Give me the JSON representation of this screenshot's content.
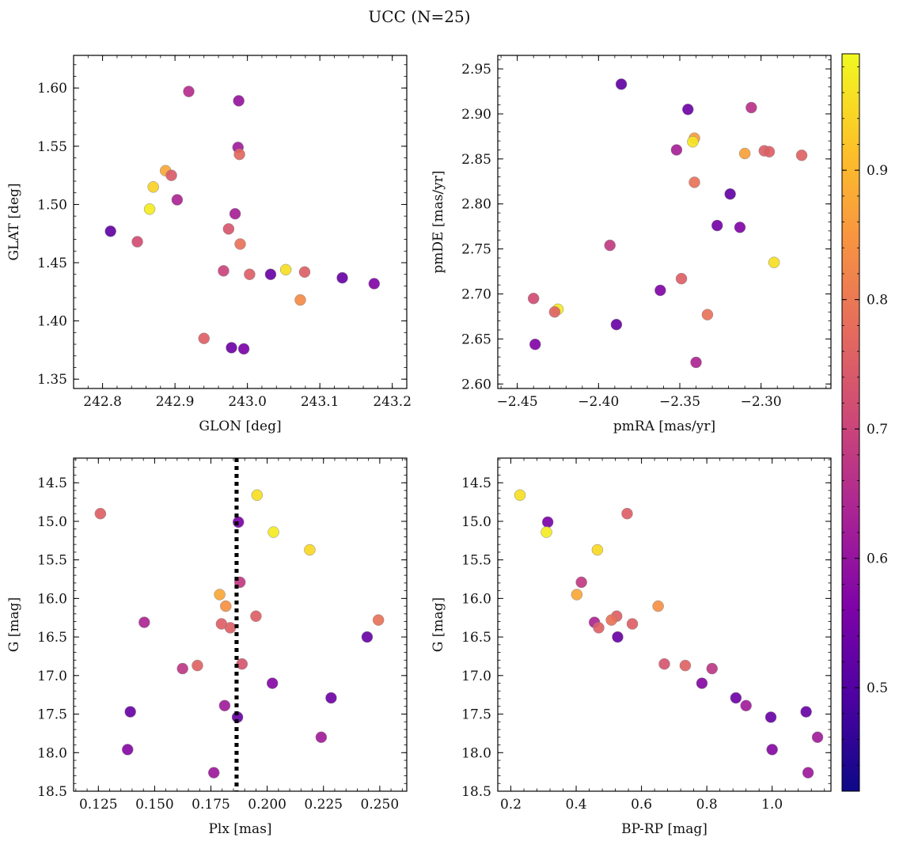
{
  "figure": {
    "title": "UCC (N=25)"
  },
  "colorbar": {
    "colormap": "plasma",
    "range": [
      0.42,
      0.99
    ],
    "ticks": [
      0.5,
      0.6,
      0.7,
      0.8,
      0.9
    ],
    "tick_labels": [
      "0.5",
      "0.6",
      "0.7",
      "0.8",
      "0.9"
    ]
  },
  "chart_data": [
    {
      "type": "scatter",
      "xlabel": "GLON [deg]",
      "ylabel": "GLAT [deg]",
      "xlim": [
        242.76,
        243.22
      ],
      "ylim": [
        1.342,
        1.628
      ],
      "y_inverted": false,
      "xticks": [
        242.8,
        242.9,
        243.0,
        243.1,
        243.2
      ],
      "xtick_labels": [
        "242.8",
        "242.9",
        "243.0",
        "243.1",
        "243.2"
      ],
      "yticks": [
        1.35,
        1.4,
        1.45,
        1.5,
        1.55,
        1.6
      ],
      "ytick_labels": [
        "1.35",
        "1.40",
        "1.45",
        "1.50",
        "1.55",
        "1.60"
      ],
      "points": [
        {
          "x": 242.919,
          "y": 1.597,
          "c": 0.61
        },
        {
          "x": 242.988,
          "y": 1.589,
          "c": 0.55
        },
        {
          "x": 242.987,
          "y": 1.549,
          "c": 0.57
        },
        {
          "x": 242.989,
          "y": 1.543,
          "c": 0.74
        },
        {
          "x": 242.887,
          "y": 1.529,
          "c": 0.86
        },
        {
          "x": 242.895,
          "y": 1.525,
          "c": 0.71
        },
        {
          "x": 242.87,
          "y": 1.515,
          "c": 0.93
        },
        {
          "x": 242.903,
          "y": 1.504,
          "c": 0.59
        },
        {
          "x": 242.865,
          "y": 1.496,
          "c": 0.97
        },
        {
          "x": 242.983,
          "y": 1.492,
          "c": 0.58
        },
        {
          "x": 242.974,
          "y": 1.479,
          "c": 0.7
        },
        {
          "x": 242.811,
          "y": 1.477,
          "c": 0.46
        },
        {
          "x": 242.848,
          "y": 1.468,
          "c": 0.68
        },
        {
          "x": 242.99,
          "y": 1.466,
          "c": 0.76
        },
        {
          "x": 243.053,
          "y": 1.444,
          "c": 0.95
        },
        {
          "x": 242.967,
          "y": 1.443,
          "c": 0.66
        },
        {
          "x": 243.079,
          "y": 1.442,
          "c": 0.72
        },
        {
          "x": 243.032,
          "y": 1.44,
          "c": 0.47
        },
        {
          "x": 243.003,
          "y": 1.44,
          "c": 0.72
        },
        {
          "x": 243.131,
          "y": 1.437,
          "c": 0.47
        },
        {
          "x": 243.175,
          "y": 1.432,
          "c": 0.51
        },
        {
          "x": 243.073,
          "y": 1.418,
          "c": 0.81
        },
        {
          "x": 242.94,
          "y": 1.385,
          "c": 0.72
        },
        {
          "x": 242.978,
          "y": 1.377,
          "c": 0.48
        },
        {
          "x": 242.995,
          "y": 1.376,
          "c": 0.5
        }
      ]
    },
    {
      "type": "scatter",
      "xlabel": "pmRA [mas/yr]",
      "ylabel": "pmDE [mas/yr]",
      "xlim": [
        -2.462,
        -2.257
      ],
      "ylim": [
        2.595,
        2.965
      ],
      "y_inverted": false,
      "xticks": [
        -2.45,
        -2.4,
        -2.35,
        -2.3
      ],
      "xtick_labels": [
        "−2.45",
        "−2.40",
        "−2.35",
        "−2.30"
      ],
      "yticks": [
        2.6,
        2.65,
        2.7,
        2.75,
        2.8,
        2.85,
        2.9,
        2.95
      ],
      "ytick_labels": [
        "2.60",
        "2.65",
        "2.70",
        "2.75",
        "2.80",
        "2.85",
        "2.90",
        "2.95"
      ],
      "points": [
        {
          "x": -2.386,
          "y": 2.933,
          "c": 0.46
        },
        {
          "x": -2.345,
          "y": 2.905,
          "c": 0.48
        },
        {
          "x": -2.306,
          "y": 2.907,
          "c": 0.62
        },
        {
          "x": -2.341,
          "y": 2.873,
          "c": 0.84
        },
        {
          "x": -2.342,
          "y": 2.869,
          "c": 0.96
        },
        {
          "x": -2.352,
          "y": 2.86,
          "c": 0.58
        },
        {
          "x": -2.298,
          "y": 2.859,
          "c": 0.72
        },
        {
          "x": -2.295,
          "y": 2.858,
          "c": 0.72
        },
        {
          "x": -2.31,
          "y": 2.856,
          "c": 0.85
        },
        {
          "x": -2.275,
          "y": 2.854,
          "c": 0.73
        },
        {
          "x": -2.341,
          "y": 2.824,
          "c": 0.76
        },
        {
          "x": -2.319,
          "y": 2.811,
          "c": 0.46
        },
        {
          "x": -2.327,
          "y": 2.776,
          "c": 0.49
        },
        {
          "x": -2.313,
          "y": 2.774,
          "c": 0.51
        },
        {
          "x": -2.393,
          "y": 2.754,
          "c": 0.64
        },
        {
          "x": -2.292,
          "y": 2.735,
          "c": 0.95
        },
        {
          "x": -2.349,
          "y": 2.717,
          "c": 0.72
        },
        {
          "x": -2.362,
          "y": 2.704,
          "c": 0.51
        },
        {
          "x": -2.44,
          "y": 2.695,
          "c": 0.68
        },
        {
          "x": -2.425,
          "y": 2.683,
          "c": 0.97
        },
        {
          "x": -2.427,
          "y": 2.68,
          "c": 0.73
        },
        {
          "x": -2.333,
          "y": 2.677,
          "c": 0.76
        },
        {
          "x": -2.389,
          "y": 2.666,
          "c": 0.47
        },
        {
          "x": -2.439,
          "y": 2.644,
          "c": 0.51
        },
        {
          "x": -2.34,
          "y": 2.624,
          "c": 0.59
        }
      ]
    },
    {
      "type": "scatter",
      "xlabel": "Plx [mas]",
      "ylabel": "G [mag]",
      "xlim": [
        0.114,
        0.262
      ],
      "ylim": [
        18.5,
        14.18
      ],
      "y_inverted": true,
      "xticks": [
        0.125,
        0.15,
        0.175,
        0.2,
        0.225,
        0.25
      ],
      "xtick_labels": [
        "0.125",
        "0.150",
        "0.175",
        "0.200",
        "0.225",
        "0.250"
      ],
      "yticks": [
        14.5,
        15.0,
        15.5,
        16.0,
        16.5,
        17.0,
        17.5,
        18.0,
        18.5
      ],
      "ytick_labels": [
        "14.5",
        "15.0",
        "15.5",
        "16.0",
        "16.5",
        "17.0",
        "17.5",
        "18.0",
        "18.5"
      ],
      "vline": {
        "x": 0.1864,
        "style": "dotted",
        "color": "#000000"
      },
      "points": [
        {
          "x": 0.1955,
          "y": 14.66,
          "c": 0.95
        },
        {
          "x": 0.1259,
          "y": 14.9,
          "c": 0.72
        },
        {
          "x": 0.1872,
          "y": 15.01,
          "c": 0.5
        },
        {
          "x": 0.2028,
          "y": 15.14,
          "c": 0.97
        },
        {
          "x": 0.2189,
          "y": 15.37,
          "c": 0.94
        },
        {
          "x": 0.1879,
          "y": 15.79,
          "c": 0.64
        },
        {
          "x": 0.1789,
          "y": 15.95,
          "c": 0.86
        },
        {
          "x": 0.1816,
          "y": 16.1,
          "c": 0.82
        },
        {
          "x": 0.195,
          "y": 16.23,
          "c": 0.72
        },
        {
          "x": 0.2494,
          "y": 16.28,
          "c": 0.76
        },
        {
          "x": 0.1454,
          "y": 16.31,
          "c": 0.59
        },
        {
          "x": 0.1797,
          "y": 16.33,
          "c": 0.72
        },
        {
          "x": 0.1836,
          "y": 16.38,
          "c": 0.72
        },
        {
          "x": 0.2444,
          "y": 16.5,
          "c": 0.47
        },
        {
          "x": 0.1888,
          "y": 16.85,
          "c": 0.7
        },
        {
          "x": 0.169,
          "y": 16.87,
          "c": 0.73
        },
        {
          "x": 0.1624,
          "y": 16.91,
          "c": 0.63
        },
        {
          "x": 0.2023,
          "y": 17.1,
          "c": 0.52
        },
        {
          "x": 0.2284,
          "y": 17.29,
          "c": 0.48
        },
        {
          "x": 0.1811,
          "y": 17.39,
          "c": 0.57
        },
        {
          "x": 0.1392,
          "y": 17.47,
          "c": 0.47
        },
        {
          "x": 0.1868,
          "y": 17.54,
          "c": 0.47
        },
        {
          "x": 0.224,
          "y": 17.8,
          "c": 0.57
        },
        {
          "x": 0.138,
          "y": 17.96,
          "c": 0.52
        },
        {
          "x": 0.1763,
          "y": 18.26,
          "c": 0.56
        }
      ]
    },
    {
      "type": "scatter",
      "xlabel": "BP-RP [mag]",
      "ylabel": "G [mag]",
      "xlim": [
        0.16,
        1.18
      ],
      "ylim": [
        18.5,
        14.18
      ],
      "y_inverted": true,
      "xticks": [
        0.2,
        0.4,
        0.6,
        0.8,
        1.0
      ],
      "xtick_labels": [
        "0.2",
        "0.4",
        "0.6",
        "0.8",
        "1.0"
      ],
      "yticks": [
        14.5,
        15.0,
        15.5,
        16.0,
        16.5,
        17.0,
        17.5,
        18.0,
        18.5
      ],
      "ytick_labels": [
        "14.5",
        "15.0",
        "15.5",
        "16.0",
        "16.5",
        "17.0",
        "17.5",
        "18.0",
        "18.5"
      ],
      "points": [
        {
          "x": 0.228,
          "y": 14.66,
          "c": 0.95
        },
        {
          "x": 0.556,
          "y": 14.9,
          "c": 0.72
        },
        {
          "x": 0.313,
          "y": 15.01,
          "c": 0.5
        },
        {
          "x": 0.309,
          "y": 15.14,
          "c": 0.97
        },
        {
          "x": 0.465,
          "y": 15.37,
          "c": 0.94
        },
        {
          "x": 0.416,
          "y": 15.79,
          "c": 0.64
        },
        {
          "x": 0.402,
          "y": 15.95,
          "c": 0.86
        },
        {
          "x": 0.651,
          "y": 16.1,
          "c": 0.82
        },
        {
          "x": 0.524,
          "y": 16.23,
          "c": 0.72
        },
        {
          "x": 0.508,
          "y": 16.28,
          "c": 0.76
        },
        {
          "x": 0.456,
          "y": 16.31,
          "c": 0.59
        },
        {
          "x": 0.572,
          "y": 16.33,
          "c": 0.72
        },
        {
          "x": 0.469,
          "y": 16.38,
          "c": 0.72
        },
        {
          "x": 0.527,
          "y": 16.5,
          "c": 0.47
        },
        {
          "x": 0.67,
          "y": 16.85,
          "c": 0.7
        },
        {
          "x": 0.734,
          "y": 16.87,
          "c": 0.73
        },
        {
          "x": 0.816,
          "y": 16.91,
          "c": 0.63
        },
        {
          "x": 0.785,
          "y": 17.1,
          "c": 0.52
        },
        {
          "x": 0.889,
          "y": 17.29,
          "c": 0.48
        },
        {
          "x": 0.92,
          "y": 17.39,
          "c": 0.57
        },
        {
          "x": 1.104,
          "y": 17.47,
          "c": 0.47
        },
        {
          "x": 0.996,
          "y": 17.54,
          "c": 0.47
        },
        {
          "x": 1.139,
          "y": 17.8,
          "c": 0.57
        },
        {
          "x": 1.0,
          "y": 17.96,
          "c": 0.52
        },
        {
          "x": 1.11,
          "y": 18.26,
          "c": 0.56
        }
      ]
    }
  ]
}
